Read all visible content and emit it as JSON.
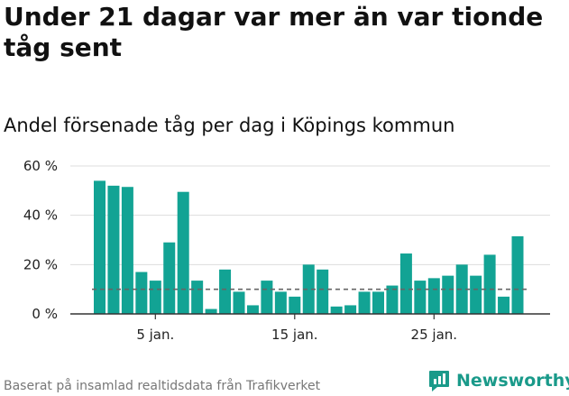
{
  "header": {
    "title": "Under 21 dagar var mer än var tionde tåg sent",
    "subtitle": "Andel försenade tåg per dag i Köpings kommun"
  },
  "footer": {
    "source": "Baserat på insamlad realtidsdata från Trafikverket",
    "brand": "Newsworthy",
    "brand_icon": "newsworthy-logo-icon"
  },
  "colors": {
    "bar": "#12a394",
    "reference_line": "#666666",
    "grid": "#dddddd",
    "brand": "#1a9a8a"
  },
  "chart_data": {
    "type": "bar",
    "title": "Andel försenade tåg per dag i Köpings kommun",
    "xlabel": "",
    "ylabel": "",
    "ylim": [
      0,
      60
    ],
    "y_ticks": [
      0,
      20,
      40,
      60
    ],
    "y_tick_labels": [
      "0 %",
      "20 %",
      "40 %",
      "60 %"
    ],
    "x_ticks": [
      5,
      15,
      25
    ],
    "x_tick_labels": [
      "5 jan.",
      "15 jan.",
      "25 jan."
    ],
    "days": [
      1,
      2,
      3,
      4,
      5,
      6,
      7,
      8,
      9,
      10,
      11,
      12,
      13,
      14,
      15,
      16,
      17,
      18,
      19,
      20,
      21,
      22,
      23,
      24,
      25,
      26,
      27,
      28,
      29,
      30,
      31
    ],
    "values": [
      54,
      52,
      51.5,
      17,
      13.5,
      29,
      49.5,
      13.5,
      2,
      18,
      9,
      3.5,
      13.5,
      9,
      7,
      20,
      18,
      3,
      3.5,
      9,
      9,
      11.5,
      24.5,
      13.5,
      14.5,
      15.5,
      20,
      15.5,
      24,
      7,
      31.5
    ],
    "reference_line": 10,
    "grid": true,
    "legend": "none"
  }
}
